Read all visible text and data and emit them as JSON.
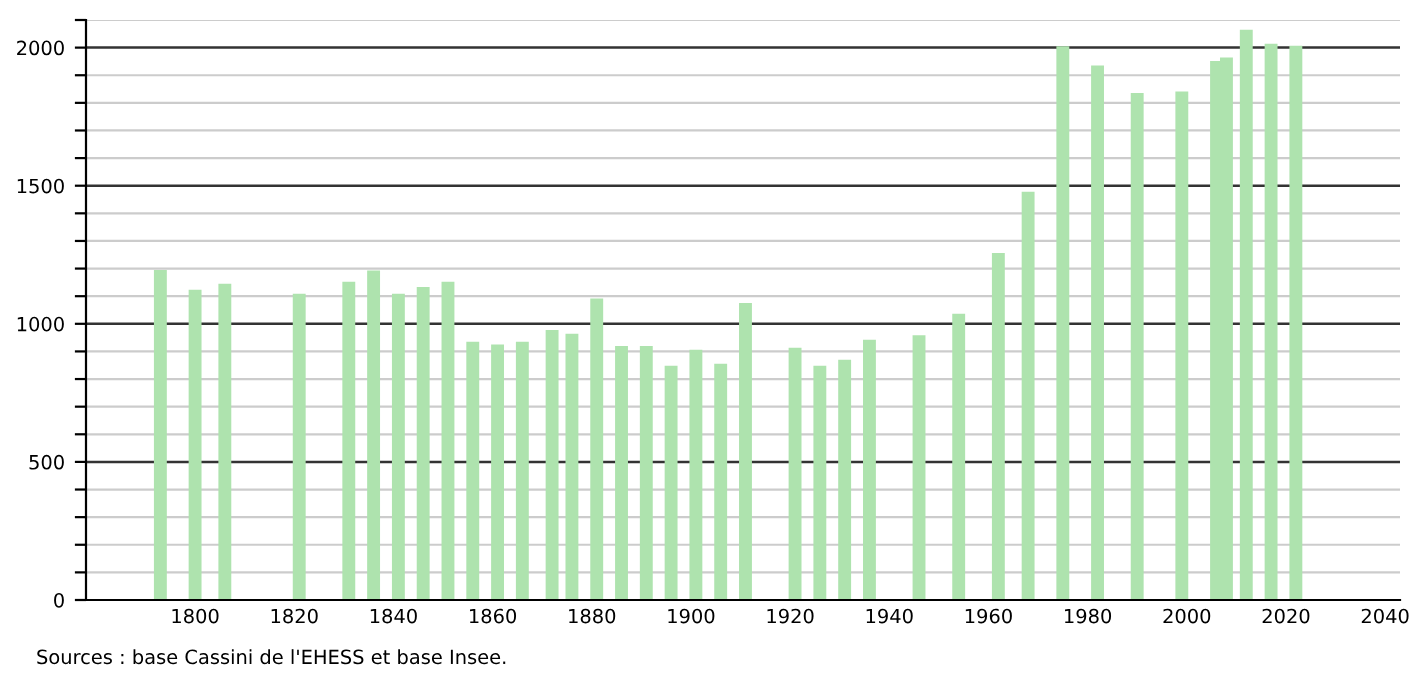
{
  "chart_data": {
    "type": "bar",
    "x": [
      1793,
      1800,
      1806,
      1821,
      1831,
      1836,
      1841,
      1846,
      1851,
      1856,
      1861,
      1866,
      1872,
      1876,
      1881,
      1886,
      1891,
      1896,
      1901,
      1906,
      1911,
      1921,
      1926,
      1931,
      1936,
      1946,
      1954,
      1962,
      1968,
      1975,
      1982,
      1990,
      1999,
      2006,
      2008,
      2012,
      2017,
      2022
    ],
    "values": [
      1195,
      1123,
      1145,
      1109,
      1152,
      1193,
      1109,
      1133,
      1152,
      935,
      925,
      935,
      978,
      964,
      1092,
      920,
      920,
      848,
      906,
      855,
      1075,
      913,
      848,
      870,
      942,
      959,
      1036,
      1256,
      1478,
      2005,
      1935,
      1836,
      1841,
      1952,
      1964,
      2065,
      2014,
      2007
    ],
    "color": "#aee3ae",
    "xlim": [
      1778,
      2043
    ],
    "xticks": [
      1800,
      1820,
      1840,
      1860,
      1880,
      1900,
      1920,
      1940,
      1960,
      1980,
      2000,
      2020,
      2040
    ],
    "ylim": [
      0,
      2100
    ],
    "yticks": [
      0,
      {
        "value": 100,
        "label": null
      },
      {
        "value": 200,
        "label": null
      },
      {
        "value": 300,
        "label": null
      },
      {
        "value": 400,
        "label": null
      },
      500,
      {
        "value": 600,
        "label": null
      },
      {
        "value": 700,
        "label": null
      },
      {
        "value": 800,
        "label": null
      },
      {
        "value": 900,
        "label": null
      },
      1000,
      {
        "value": 1100,
        "label": null
      },
      {
        "value": 1200,
        "label": null
      },
      {
        "value": 1300,
        "label": null
      },
      {
        "value": 1400,
        "label": null
      },
      1500,
      {
        "value": 1600,
        "label": null
      },
      {
        "value": 1700,
        "label": null
      },
      {
        "value": 1800,
        "label": null
      },
      {
        "value": 1900,
        "label": null
      },
      2000,
      {
        "value": 2100,
        "label": null
      }
    ],
    "grid": "y",
    "annotations": [
      "Sources : base Cassini de l'EHESS et base Insee."
    ]
  }
}
